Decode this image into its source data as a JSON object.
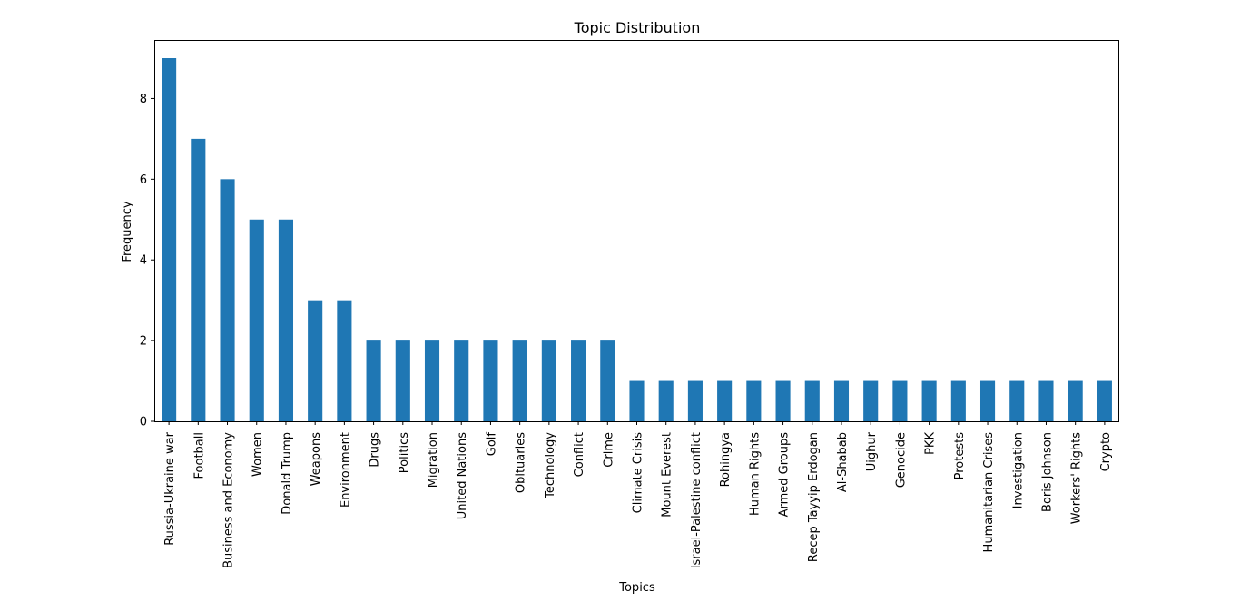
{
  "chart_data": {
    "type": "bar",
    "title": "Topic Distribution",
    "xlabel": "Topics",
    "ylabel": "Frequency",
    "ylim": [
      0,
      9.45
    ],
    "yticks": [
      0,
      2,
      4,
      6,
      8
    ],
    "grid": false,
    "legend": "none",
    "bar_color": "#1f77b4",
    "categories": [
      "Russia-Ukraine war",
      "Football",
      "Business and Economy",
      "Women",
      "Donald Trump",
      "Weapons",
      "Environment",
      "Drugs",
      "Politics",
      "Migration",
      "United Nations",
      "Golf",
      "Obituaries",
      "Technology",
      "Conflict",
      "Crime",
      "Climate Crisis",
      "Mount Everest",
      "Israel-Palestine conflict",
      "Rohingya",
      "Human Rights",
      "Armed Groups",
      "Recep Tayyip Erdogan",
      "Al-Shabab",
      "Uighur",
      "Genocide",
      "PKK",
      "Protests",
      "Humanitarian Crises",
      "Investigation",
      "Boris Johnson",
      "Workers' Rights",
      "Crypto"
    ],
    "values": [
      9,
      7,
      6,
      5,
      5,
      3,
      3,
      2,
      2,
      2,
      2,
      2,
      2,
      2,
      2,
      2,
      1,
      1,
      1,
      1,
      1,
      1,
      1,
      1,
      1,
      1,
      1,
      1,
      1,
      1,
      1,
      1,
      1
    ]
  }
}
